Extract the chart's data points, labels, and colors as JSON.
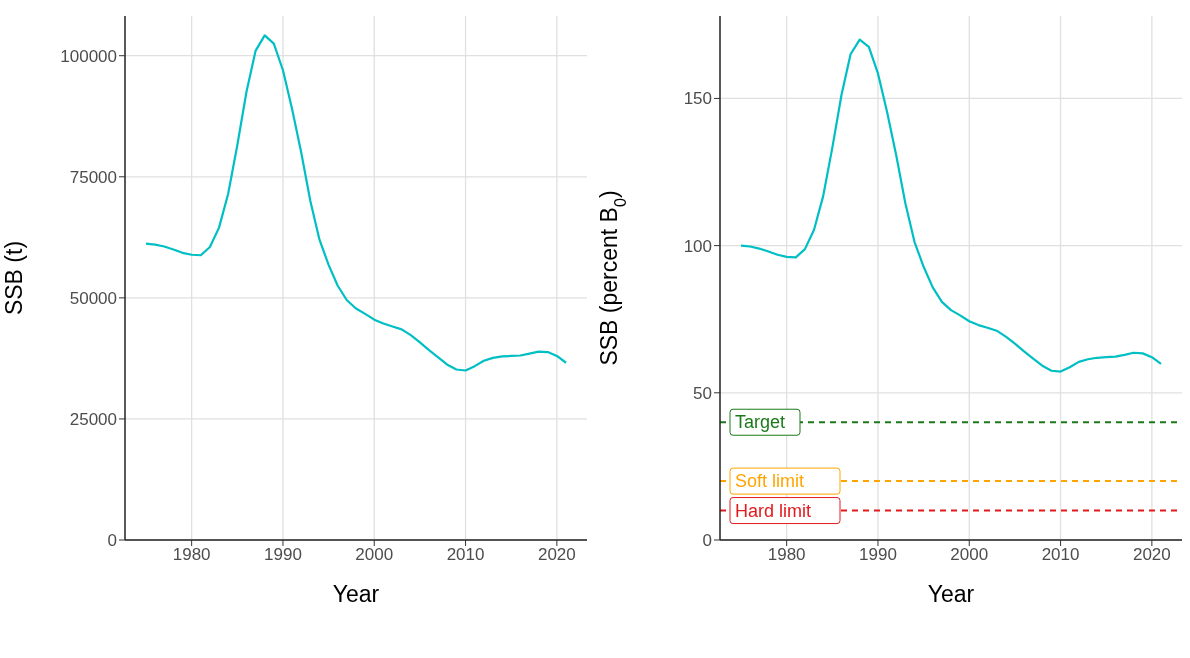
{
  "chart_data": [
    {
      "type": "line",
      "xlabel": "Year",
      "ylabel": "SSB (t)",
      "xlim": [
        1972.7,
        2023.3
      ],
      "ylim": [
        0,
        108200
      ],
      "xticks": [
        1980,
        1990,
        2000,
        2010,
        2020
      ],
      "yticks": [
        0,
        25000,
        50000,
        75000,
        100000
      ],
      "grid": true,
      "legend": false,
      "x": [
        1975,
        1976,
        1977,
        1978,
        1979,
        1980,
        1981,
        1982,
        1983,
        1984,
        1985,
        1986,
        1987,
        1988,
        1989,
        1990,
        1991,
        1992,
        1993,
        1994,
        1995,
        1996,
        1997,
        1998,
        1999,
        2000,
        2001,
        2002,
        2003,
        2004,
        2005,
        2006,
        2007,
        2008,
        2009,
        2010,
        2011,
        2012,
        2013,
        2014,
        2015,
        2016,
        2017,
        2018,
        2019,
        2020,
        2021
      ],
      "series": [
        {
          "color": "#00bfc4",
          "values": [
            61200,
            61000,
            60600,
            60000,
            59300,
            58900,
            58800,
            60500,
            64500,
            71500,
            81500,
            92500,
            101000,
            104200,
            102500,
            97000,
            89000,
            80000,
            70000,
            62000,
            56800,
            52500,
            49500,
            47800,
            46700,
            45500,
            44700,
            44100,
            43500,
            42300,
            40800,
            39200,
            37700,
            36200,
            35200,
            35000,
            35900,
            37000,
            37600,
            37900,
            38000,
            38100,
            38500,
            38900,
            38800,
            38000,
            36600
          ]
        }
      ]
    },
    {
      "type": "line",
      "xlabel": "Year",
      "ylabel": "SSB (percent B$_{0}$)",
      "xlim": [
        1972.7,
        2023.3
      ],
      "ylim": [
        0,
        178
      ],
      "xticks": [
        1980,
        1990,
        2000,
        2010,
        2020
      ],
      "yticks": [
        0,
        50,
        100,
        150
      ],
      "grid": true,
      "legend": false,
      "x": [
        1975,
        1976,
        1977,
        1978,
        1979,
        1980,
        1981,
        1982,
        1983,
        1984,
        1985,
        1986,
        1987,
        1988,
        1989,
        1990,
        1991,
        1992,
        1993,
        1994,
        1995,
        1996,
        1997,
        1998,
        1999,
        2000,
        2001,
        2002,
        2003,
        2004,
        2005,
        2006,
        2007,
        2008,
        2009,
        2010,
        2011,
        2012,
        2013,
        2014,
        2015,
        2016,
        2017,
        2018,
        2019,
        2020,
        2021
      ],
      "series": [
        {
          "color": "#00bfc4",
          "values": [
            100,
            99.7,
            99,
            98,
            96.9,
            96.2,
            96,
            98.8,
            105.4,
            116.8,
            133.2,
            151.1,
            165,
            170,
            167.5,
            158.5,
            145.4,
            130.7,
            114.4,
            101.3,
            92.8,
            85.8,
            80.9,
            78.1,
            76.3,
            74.3,
            73,
            72.1,
            71.1,
            69.1,
            66.7,
            64.1,
            61.6,
            59.2,
            57.5,
            57.2,
            58.7,
            60.5,
            61.4,
            61.9,
            62.1,
            62.3,
            62.9,
            63.6,
            63.4,
            62.1,
            59.8
          ]
        }
      ],
      "ref_lines": [
        {
          "axis": "y",
          "value": 40,
          "label": "Target",
          "color": "#1a7a1a",
          "line_style": "dashed"
        },
        {
          "axis": "y",
          "value": 20,
          "label": "Soft limit",
          "color": "#ffa500",
          "line_style": "dashed"
        },
        {
          "axis": "y",
          "value": 10,
          "label": "Hard limit",
          "color": "#e31a1c",
          "line_style": "dashed"
        }
      ]
    }
  ]
}
